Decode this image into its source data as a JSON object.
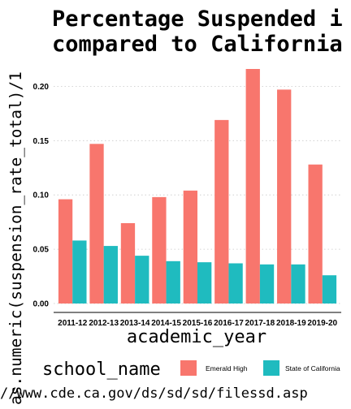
{
  "chart_data": {
    "type": "bar",
    "title_lines": [
      "Percentage Suspended i",
      "compared to California"
    ],
    "xlabel": "academic_year",
    "ylabel": "as.numeric(suspension_rate_total)/1",
    "caption": "//www.cde.ca.gov/ds/sd/sd/filessd.asp",
    "categories": [
      "2011-12",
      "2012-13",
      "2013-14",
      "2014-15",
      "2015-16",
      "2016-17",
      "2017-18",
      "2018-19",
      "2019-20"
    ],
    "series": [
      {
        "name": "Emerald High",
        "color": "#F8766D",
        "values": [
          0.096,
          0.147,
          0.074,
          0.098,
          0.104,
          0.169,
          0.216,
          0.197,
          0.128
        ]
      },
      {
        "name": "State of California",
        "color": "#1FBBBF",
        "values": [
          0.058,
          0.053,
          0.044,
          0.039,
          0.038,
          0.037,
          0.036,
          0.036,
          0.026
        ]
      }
    ],
    "yticks": [
      "0.00",
      "0.05",
      "0.10",
      "0.15",
      "0.20"
    ],
    "ylim": [
      0,
      0.2
    ],
    "legend": {
      "title": "school_name",
      "position": "bottom"
    },
    "grid": true
  }
}
